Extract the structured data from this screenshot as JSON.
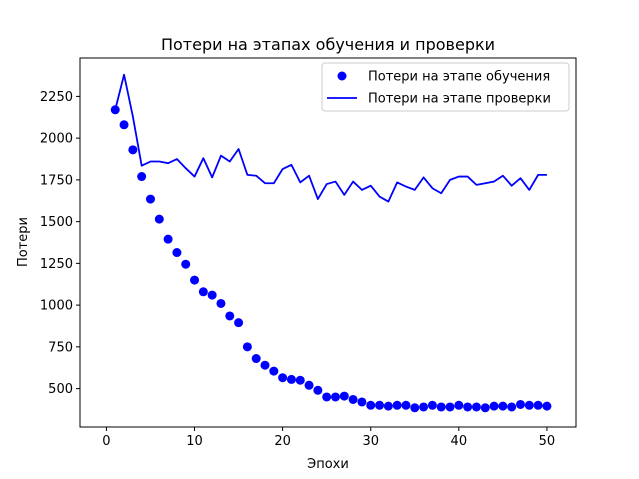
{
  "chart_data": {
    "type": "line",
    "title": "Потери на этапах обучения и проверки",
    "xlabel": "Эпохи",
    "ylabel": "Потери",
    "xlim": [
      -3,
      53.3
    ],
    "ylim": [
      270,
      2480
    ],
    "xticks": [
      0,
      10,
      20,
      30,
      40,
      50
    ],
    "yticks": [
      500,
      750,
      1000,
      1250,
      1500,
      1750,
      2000,
      2250
    ],
    "grid": false,
    "legend": "top-right",
    "series": [
      {
        "name": "Потери на этапе обучения",
        "style": "points",
        "color": "#0000ff",
        "x": [
          1,
          2,
          3,
          4,
          5,
          6,
          7,
          8,
          9,
          10,
          11,
          12,
          13,
          14,
          15,
          16,
          17,
          18,
          19,
          20,
          21,
          22,
          23,
          24,
          25,
          26,
          27,
          28,
          29,
          30,
          31,
          32,
          33,
          34,
          35,
          36,
          37,
          38,
          39,
          40,
          41,
          42,
          43,
          44,
          45,
          46,
          47,
          48,
          49,
          50
        ],
        "values": [
          2170,
          2080,
          1930,
          1770,
          1635,
          1515,
          1395,
          1315,
          1245,
          1150,
          1080,
          1060,
          1010,
          935,
          895,
          750,
          680,
          640,
          605,
          565,
          555,
          550,
          520,
          490,
          450,
          450,
          455,
          435,
          420,
          400,
          400,
          395,
          400,
          400,
          385,
          390,
          400,
          390,
          390,
          400,
          390,
          390,
          385,
          395,
          395,
          390,
          405,
          400,
          400,
          395
        ]
      },
      {
        "name": "Потери на этапе проверки",
        "style": "line",
        "color": "#0000ff",
        "x": [
          1,
          2,
          3,
          4,
          5,
          6,
          7,
          8,
          9,
          10,
          11,
          12,
          13,
          14,
          15,
          16,
          17,
          18,
          19,
          20,
          21,
          22,
          23,
          24,
          25,
          26,
          27,
          28,
          29,
          30,
          31,
          32,
          33,
          34,
          35,
          36,
          37,
          38,
          39,
          40,
          41,
          42,
          43,
          44,
          45,
          46,
          47,
          48,
          49,
          50
        ],
        "values": [
          2170,
          2380,
          2130,
          1835,
          1860,
          1860,
          1850,
          1875,
          1820,
          1770,
          1880,
          1765,
          1895,
          1860,
          1935,
          1780,
          1775,
          1730,
          1730,
          1815,
          1840,
          1735,
          1775,
          1635,
          1725,
          1740,
          1660,
          1740,
          1690,
          1715,
          1650,
          1620,
          1735,
          1710,
          1690,
          1765,
          1700,
          1670,
          1750,
          1770,
          1770,
          1720,
          1730,
          1740,
          1775,
          1715,
          1760,
          1690,
          1780,
          1780
        ]
      }
    ]
  }
}
